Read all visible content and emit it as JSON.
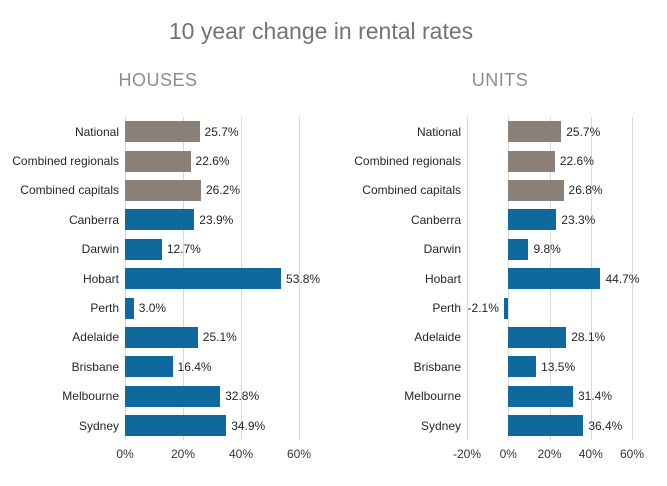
{
  "page": {
    "title": "10 year change in rental rates"
  },
  "colors": {
    "background": "#ffffff",
    "title_text": "#737373",
    "heading_text": "#8c8c8c",
    "label_text": "#262626",
    "axis_text": "#333333",
    "gridline": "#d9d9d9",
    "bar_aggregate": "#8a8077",
    "bar_capital": "#10699d"
  },
  "chart_data": [
    {
      "type": "bar",
      "orientation": "horizontal",
      "title": "HOUSES",
      "categories": [
        "National",
        "Combined regionals",
        "Combined capitals",
        "Canberra",
        "Darwin",
        "Hobart",
        "Perth",
        "Adelaide",
        "Brisbane",
        "Melbourne",
        "Sydney"
      ],
      "values": [
        25.7,
        22.6,
        26.2,
        23.9,
        12.7,
        53.8,
        3.0,
        25.1,
        16.4,
        32.8,
        34.9
      ],
      "value_labels": [
        "25.7%",
        "22.6%",
        "26.2%",
        "23.9%",
        "12.7%",
        "53.8%",
        "3.0%",
        "25.1%",
        "16.4%",
        "32.8%",
        "34.9%"
      ],
      "bar_roles": [
        "aggregate",
        "aggregate",
        "aggregate",
        "capital",
        "capital",
        "capital",
        "capital",
        "capital",
        "capital",
        "capital",
        "capital"
      ],
      "xlim": [
        0,
        60
      ],
      "xticks": [
        {
          "value": 0,
          "label": "0%"
        },
        {
          "value": 20,
          "label": "20%"
        },
        {
          "value": 40,
          "label": "40%"
        },
        {
          "value": 60,
          "label": "60%"
        }
      ],
      "grid": true,
      "legend": false,
      "xlabel": "",
      "ylabel": ""
    },
    {
      "type": "bar",
      "orientation": "horizontal",
      "title": "UNITS",
      "categories": [
        "National",
        "Combined regionals",
        "Combined capitals",
        "Canberra",
        "Darwin",
        "Hobart",
        "Perth",
        "Adelaide",
        "Brisbane",
        "Melbourne",
        "Sydney"
      ],
      "values": [
        25.7,
        22.6,
        26.8,
        23.3,
        9.8,
        44.7,
        -2.1,
        28.1,
        13.5,
        31.4,
        36.4
      ],
      "value_labels": [
        "25.7%",
        "22.6%",
        "26.8%",
        "23.3%",
        "9.8%",
        "44.7%",
        "-2.1%",
        "28.1%",
        "13.5%",
        "31.4%",
        "36.4%"
      ],
      "bar_roles": [
        "aggregate",
        "aggregate",
        "aggregate",
        "capital",
        "capital",
        "capital",
        "capital",
        "capital",
        "capital",
        "capital",
        "capital"
      ],
      "xlim": [
        -20,
        60
      ],
      "xticks": [
        {
          "value": -20,
          "label": "-20%"
        },
        {
          "value": 0,
          "label": "0%"
        },
        {
          "value": 20,
          "label": "20%"
        },
        {
          "value": 40,
          "label": "40%"
        },
        {
          "value": 60,
          "label": "60%"
        }
      ],
      "grid": true,
      "legend": false,
      "xlabel": "",
      "ylabel": ""
    }
  ]
}
